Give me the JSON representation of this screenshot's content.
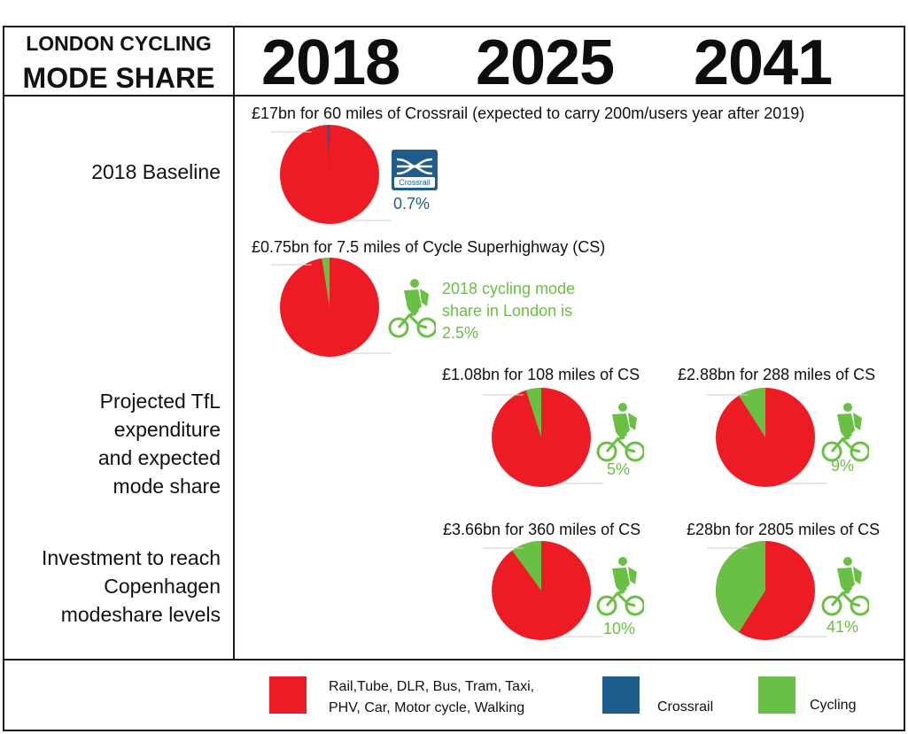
{
  "header": {
    "title_line1": "LONDON CYCLING",
    "title_line2": "MODE SHARE",
    "years": [
      "2018",
      "2025",
      "2041"
    ]
  },
  "row_labels": {
    "baseline": "2018 Baseline",
    "projected": [
      "Projected TfL",
      "expenditure",
      "and expected",
      "mode share"
    ],
    "copenhagen": [
      "Investment to reach",
      "Copenhagen",
      "modeshare levels"
    ]
  },
  "crossrail_logo_text": "Crossrail",
  "cycling_note": [
    "2018 cycling mode",
    "share in London is",
    "2.5%"
  ],
  "colors": {
    "other": "#ed1c24",
    "crossrail": "#1e5d8c",
    "cycling": "#6abf45"
  },
  "legend": {
    "other": [
      "Rail,Tube, DLR, Bus, Tram, Taxi,",
      "PHV, Car, Motor cycle, Walking"
    ],
    "crossrail": "Crossrail",
    "cycling": "Cycling"
  },
  "chart_data": [
    {
      "type": "pie",
      "caption": "£17bn for 60 miles of Crossrail (expected to carry 200m/users year after 2019)",
      "categories": [
        "Rail,Tube, DLR, Bus, Tram, Taxi, PHV, Car, Motor cycle, Walking",
        "Crossrail"
      ],
      "values": [
        99.3,
        0.7
      ],
      "highlight_label": "0.7%"
    },
    {
      "type": "pie",
      "caption": "£0.75bn for 7.5 miles of Cycle Superhighway (CS)",
      "categories": [
        "Rail,Tube, DLR, Bus, Tram, Taxi, PHV, Car, Motor cycle, Walking",
        "Cycling"
      ],
      "values": [
        97.5,
        2.5
      ],
      "highlight_label": ""
    },
    {
      "type": "pie",
      "caption": "£1.08bn  for 108 miles of CS",
      "categories": [
        "Rail,Tube, DLR, Bus, Tram, Taxi, PHV, Car, Motor cycle, Walking",
        "Cycling"
      ],
      "values": [
        95,
        5
      ],
      "highlight_label": "5%"
    },
    {
      "type": "pie",
      "caption": "£2.88bn for 288 miles of CS",
      "categories": [
        "Rail,Tube, DLR, Bus, Tram, Taxi, PHV, Car, Motor cycle, Walking",
        "Cycling"
      ],
      "values": [
        91,
        9
      ],
      "highlight_label": "9%"
    },
    {
      "type": "pie",
      "caption": "£3.66bn for 360 miles of CS",
      "categories": [
        "Rail,Tube, DLR, Bus, Tram, Taxi, PHV, Car, Motor cycle, Walking",
        "Cycling"
      ],
      "values": [
        90,
        10
      ],
      "highlight_label": "10%"
    },
    {
      "type": "pie",
      "caption": "£28bn for 2805 miles of CS",
      "categories": [
        "Rail,Tube, DLR, Bus, Tram, Taxi, PHV, Car, Motor cycle, Walking",
        "Cycling"
      ],
      "values": [
        59,
        41
      ],
      "highlight_label": "41%"
    }
  ]
}
